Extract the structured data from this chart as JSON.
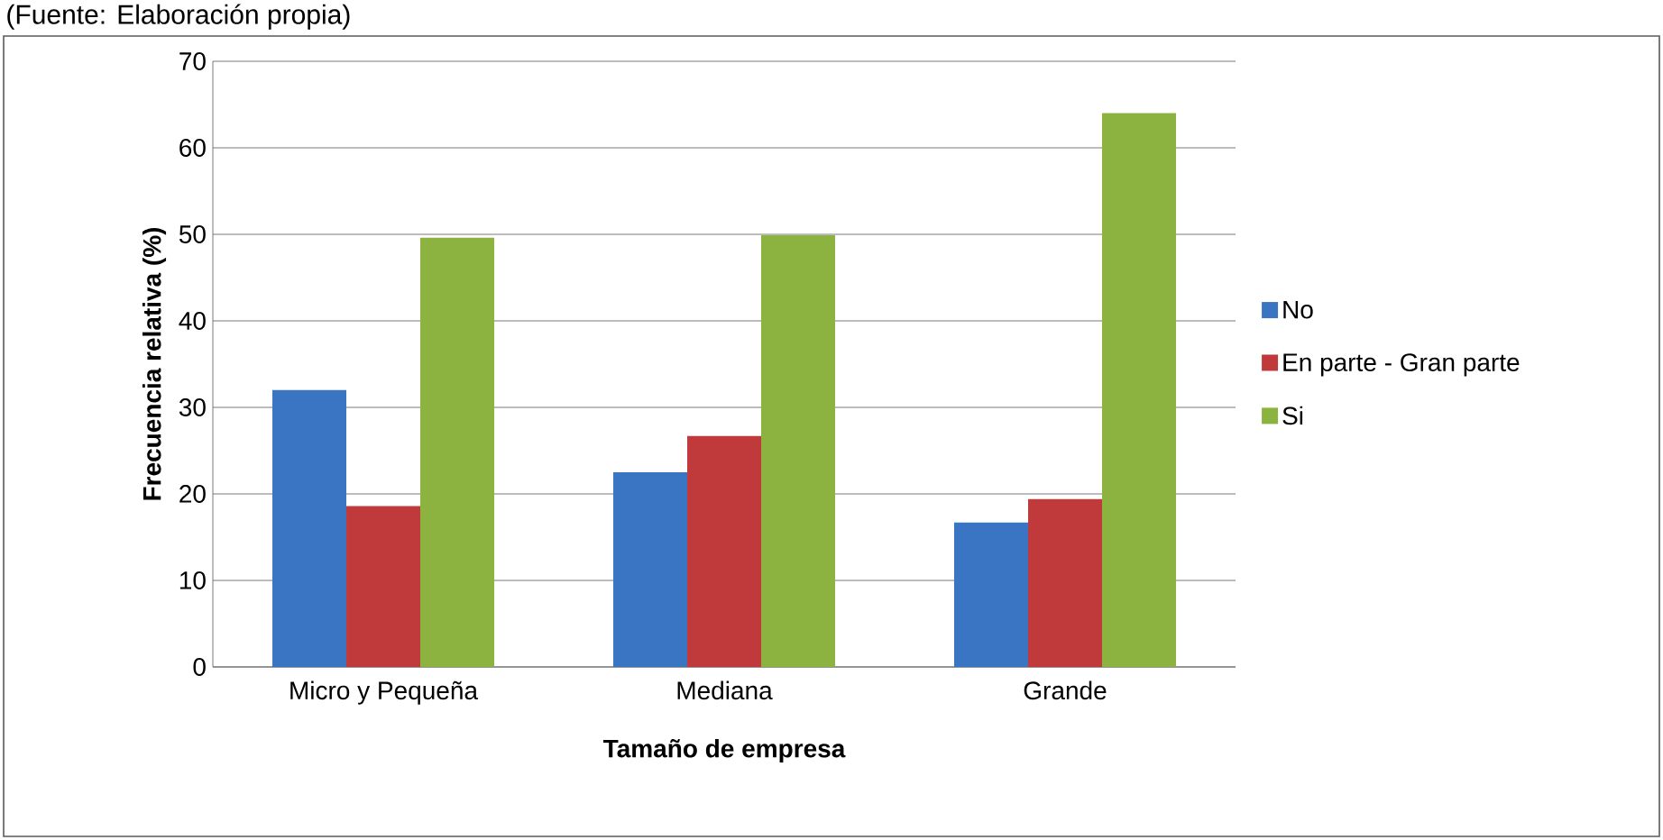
{
  "chart_data": {
    "type": "bar",
    "xlabel": "Tamaño de empresa",
    "ylabel": "Frecuencia relativa (%)",
    "annotations": [
      "(Fuente: Elaboración propia)"
    ],
    "categories": [
      "Micro y Pequeña",
      "Mediana",
      "Grande"
    ],
    "series": [
      {
        "name": "No",
        "color": "#3a75c4",
        "values": [
          32.0,
          22.5,
          16.7
        ]
      },
      {
        "name": "En parte - Gran parte",
        "color": "#c0393b",
        "values": [
          18.6,
          26.7,
          19.4
        ]
      },
      {
        "name": "Si",
        "color": "#8cb23f",
        "values": [
          49.6,
          49.9,
          64.0
        ]
      }
    ],
    "ylim": [
      0,
      70
    ],
    "yticks": [
      0,
      10,
      20,
      30,
      40,
      50,
      60,
      70
    ],
    "grid": "y",
    "legend": "right"
  }
}
